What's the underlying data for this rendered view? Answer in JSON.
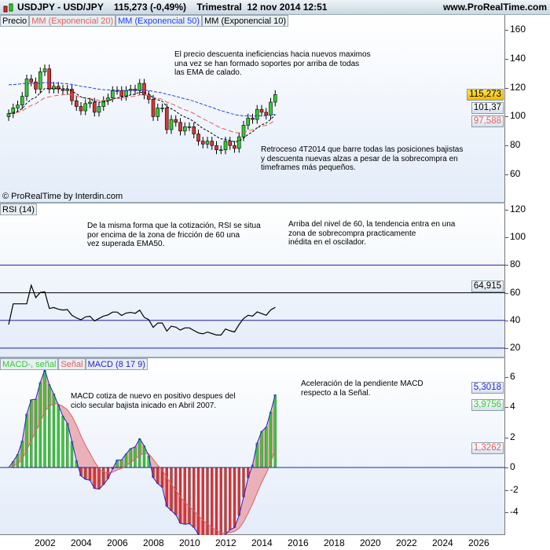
{
  "header": {
    "title": "USDJPY - USD/JPY    115,273 (-0,49%)    Trimestral  12 nov 2014 12:51",
    "site": "www.ProRealTime.com",
    "icon": "candlestick-icon"
  },
  "price_panel": {
    "legend": [
      "Precio",
      "MM (Exponencial 20)",
      "MM (Exponencial 50)",
      "MM (Exponencial 10)"
    ],
    "legend_colors": [
      "#000000",
      "#e06060",
      "#2040ff",
      "#000000"
    ],
    "note1": "El precio descuenta ineficiencias hacia nuevos maximos\nuna vez se han formado soportes por arriba de todas\nlas EMA de calado.",
    "note2": "Retroceso 4T2014 que barre todas las posiciones bajistas\ny descuenta nuevas alzas a pesar de la sobrecompra en\ntimeframes más pequeños.",
    "copyright": "© ProRealTime by Interdin.com",
    "ticks": [
      "160",
      "140",
      "120",
      "100",
      "80",
      "60"
    ],
    "last_price": "115,273",
    "ema50_value": "101,37",
    "ema20_value": "97,588"
  },
  "rsi_panel": {
    "legend": "RSI (14)",
    "note1": "De la misma forma que la cotización, RSI se situa\npor encima de la zona de fricción de 60 una\nvez superada EMA50.",
    "note2": "Arriba del nivel de 60, la tendencia entra en una\nzona de sobrecompra practicamente\ninédita en el oscilador.",
    "ticks": [
      "120",
      "100",
      "80",
      "60",
      "40",
      "20"
    ],
    "levels": [
      80,
      60,
      40,
      20
    ],
    "value": "64,915"
  },
  "macd_panel": {
    "legend": [
      "MACD-, señal",
      "Señal",
      "MACD (8 17 9)"
    ],
    "note1": "MACD cotiza de nuevo en positivo despues del\nciclo secular bajista inicado en Abril 2007.",
    "note2": "Aceleración de la pendiente MACD\nrespecto a la Señal.",
    "ticks": [
      "6",
      "4",
      "2",
      "0",
      "-2",
      "-4"
    ],
    "macd_value": "5,3018",
    "hist_value": "3,9756",
    "signal_value": "1,3262"
  },
  "x_axis": {
    "ticks": [
      "2002",
      "2004",
      "2006",
      "2008",
      "2010",
      "2012",
      "2014",
      "2016",
      "2018",
      "2020",
      "2022",
      "2024",
      "2026"
    ]
  },
  "colors": {
    "up": "#33cc33",
    "down": "#dd3333",
    "ema20": "#e06060",
    "ema50": "#2040ff",
    "ema10": "#000000",
    "last": "#ffcc00"
  },
  "chart_data": {
    "type": "candlestick",
    "frequency": "quarterly",
    "start": "2000",
    "closes": [
      102,
      106,
      108,
      114,
      126,
      124,
      119,
      131,
      133,
      119,
      121,
      119,
      118,
      119,
      111,
      107,
      104,
      109,
      110,
      103,
      107,
      111,
      113,
      118,
      118,
      114,
      118,
      119,
      118,
      123,
      115,
      112,
      100,
      106,
      106,
      91,
      98,
      96,
      90,
      93,
      93,
      88,
      83,
      81,
      83,
      80,
      77,
      77,
      83,
      80,
      78,
      86,
      94,
      99,
      98,
      105,
      103,
      101,
      110,
      115.273
    ],
    "ylim": [
      50,
      170
    ]
  }
}
